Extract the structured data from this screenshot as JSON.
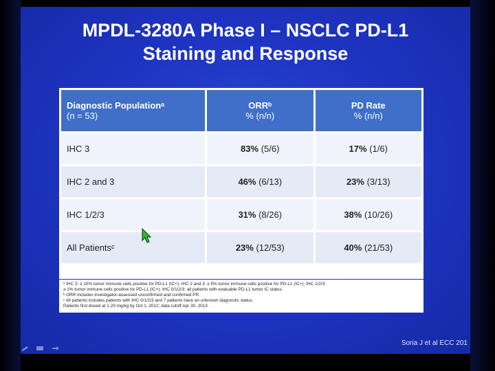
{
  "title": {
    "line1": "MPDL-3280A Phase I – NSCLC PD-L1",
    "line2": "Staining and Response"
  },
  "table": {
    "headers": [
      {
        "main": "Diagnostic Populationᵃ",
        "sub": "(n = 53)"
      },
      {
        "main": "ORRᵇ",
        "sub": "% (n/n)"
      },
      {
        "main": "PD Rate",
        "sub": "% (n/n)"
      }
    ],
    "rows": [
      {
        "label": "IHC 3",
        "orr_pct": "83%",
        "orr_n": "(5/6)",
        "pd_pct": "17%",
        "pd_n": "(1/6)"
      },
      {
        "label": "IHC 2 and 3",
        "orr_pct": "46%",
        "orr_n": "(6/13)",
        "pd_pct": "23%",
        "pd_n": "(3/13)"
      },
      {
        "label": "IHC 1/2/3",
        "orr_pct": "31%",
        "orr_n": "(8/26)",
        "pd_pct": "38%",
        "pd_n": "(10/26)"
      },
      {
        "label": "All Patientsᶜ",
        "orr_pct": "23%",
        "orr_n": "(12/53)",
        "pd_pct": "40%",
        "pd_n": "(21/53)"
      }
    ]
  },
  "footnotes": [
    "ᵃ IHC 3: ≥ 10% tumor immune cells positive for PD-L1 (IC+); IHC 2 and 3: ≥ 5% tumor immune cells positive for PD-L1 (IC+); IHC 1/2/3:",
    "≥ 1% tumor immune cells positive for PD-L1 (IC+); IHC 0/1/2/3: all patients with evaluable PD-L1 tumor IC status.",
    "ᵇ ORR includes investigator-assessed unconfirmed and confirmed PR.",
    "ᶜ All patients includes patients with IHC 0/1/2/3 and 7 patients have an unknown diagnostic status.",
    "Patients first dosed at 1-20 mg/kg by Oct 1, 2012; data cutoff Apr 30, 2013."
  ],
  "citation": "Soria J et al ECC 201",
  "colors": {
    "slide_bg": "#1f35c4",
    "header_bg": "#3f6fc8",
    "row_bg": "#e4eaf6"
  },
  "icons": [
    "pen-icon",
    "screen-icon",
    "arrow-icon",
    "cursor-icon"
  ]
}
